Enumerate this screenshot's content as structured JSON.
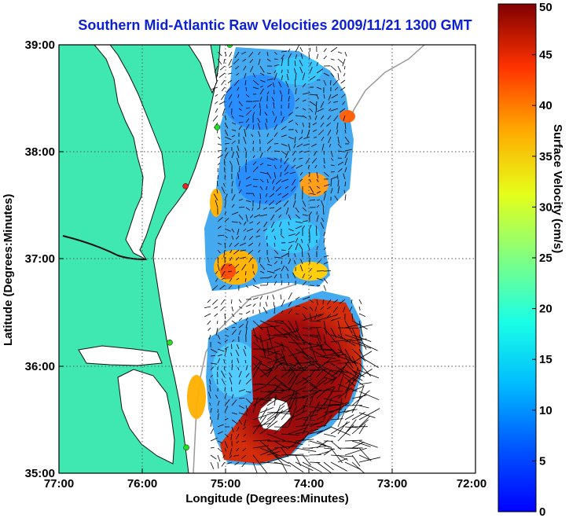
{
  "title": "Southern Mid-Atlantic Raw Velocities 2009/11/21 1300 GMT",
  "xlabel": "Longitude (Degrees:Minutes)",
  "ylabel": "Latitude (Degrees:Minutes)",
  "colorbar": {
    "label": "Surface Velocity (cm/s)",
    "min": 0,
    "max": 50,
    "ticks": [
      "0",
      "5",
      "10",
      "15",
      "20",
      "25",
      "30",
      "35",
      "40",
      "45",
      "50"
    ],
    "colormap": "jet"
  },
  "axes": {
    "lon_ticks": [
      "77:00",
      "76:00",
      "75:00",
      "74:00",
      "73:00",
      "72:00"
    ],
    "lat_ticks": [
      "39:00",
      "38:00",
      "37:00",
      "36:00",
      "35:00"
    ],
    "lon_range": [
      -77,
      -72
    ],
    "lat_range": [
      35,
      39
    ],
    "grid": "dotted"
  },
  "colors": {
    "land": "#3ee8b0",
    "ocean": "#ffffff",
    "title": "#0b1fd6",
    "station_active": "#22dd22",
    "station_alert": "#ee2222"
  },
  "stations": [
    {
      "lon": -74.95,
      "lat": 39.0,
      "status": "active"
    },
    {
      "lon": -75.1,
      "lat": 38.23,
      "status": "active"
    },
    {
      "lon": -75.48,
      "lat": 37.68,
      "status": "alert"
    },
    {
      "lon": -75.67,
      "lat": 36.22,
      "status": "active"
    },
    {
      "lon": -75.47,
      "lat": 35.24,
      "status": "active"
    }
  ]
}
